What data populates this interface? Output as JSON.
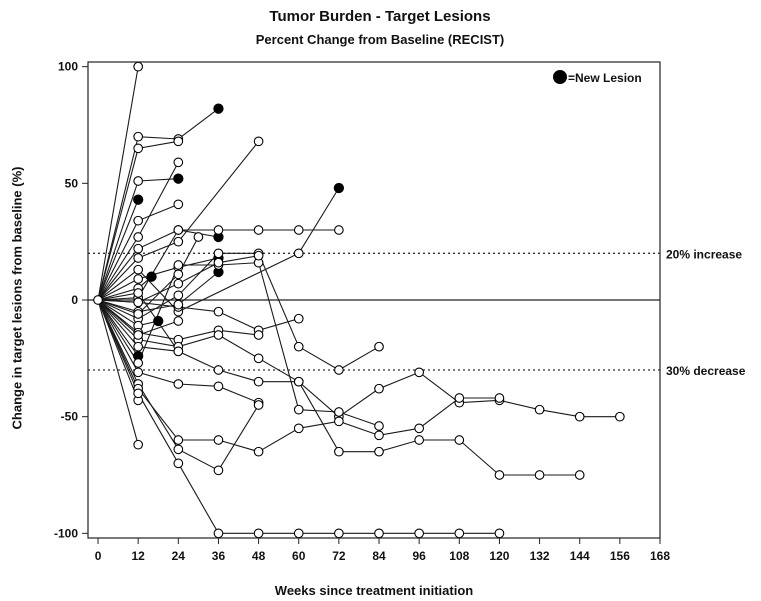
{
  "chart_data": {
    "type": "line",
    "title": "Tumor Burden - Target Lesions",
    "subtitle": "Percent Change from Baseline (RECIST)",
    "xlabel": "Weeks since treatment initiation",
    "ylabel": "Change in target lesions from baseline (%)",
    "xlim": [
      -3,
      168
    ],
    "ylim": [
      -102,
      102
    ],
    "xticks": [
      0,
      12,
      24,
      36,
      48,
      60,
      72,
      84,
      96,
      108,
      120,
      132,
      144,
      156,
      168
    ],
    "yticks": [
      -100,
      -50,
      0,
      50,
      100
    ],
    "legend": {
      "label": "=New Lesion",
      "marker": "filled-circle",
      "position": "top-right"
    },
    "reference_lines": [
      {
        "y": 20,
        "label": "20% increase",
        "style": "dotted"
      },
      {
        "y": -30,
        "label": "30% decrease",
        "style": "dotted"
      }
    ],
    "zero_line": 0,
    "series": [
      {
        "points": [
          [
            0,
            0
          ],
          [
            12,
            100
          ]
        ]
      },
      {
        "points": [
          [
            0,
            0
          ],
          [
            12,
            70
          ],
          [
            24,
            69
          ],
          [
            36,
            82
          ]
        ],
        "new_lesion": [
          false,
          false,
          false,
          true
        ]
      },
      {
        "points": [
          [
            0,
            0
          ],
          [
            12,
            65
          ],
          [
            24,
            68
          ]
        ]
      },
      {
        "points": [
          [
            0,
            0
          ],
          [
            12,
            51
          ],
          [
            24,
            52
          ]
        ],
        "new_lesion": [
          false,
          false,
          true
        ]
      },
      {
        "points": [
          [
            0,
            0
          ],
          [
            12,
            43
          ]
        ],
        "new_lesion": [
          false,
          true
        ]
      },
      {
        "points": [
          [
            0,
            0
          ],
          [
            12,
            34
          ],
          [
            24,
            41
          ]
        ]
      },
      {
        "points": [
          [
            0,
            0
          ],
          [
            12,
            27
          ],
          [
            24,
            59
          ]
        ]
      },
      {
        "points": [
          [
            0,
            0
          ],
          [
            12,
            22
          ],
          [
            24,
            30
          ],
          [
            36,
            27
          ]
        ],
        "new_lesion": [
          false,
          false,
          false,
          true
        ]
      },
      {
        "points": [
          [
            0,
            0
          ],
          [
            12,
            18
          ],
          [
            24,
            25
          ],
          [
            48,
            68
          ]
        ]
      },
      {
        "points": [
          [
            0,
            0
          ],
          [
            12,
            13
          ],
          [
            24,
            -5
          ],
          [
            60,
            20
          ],
          [
            72,
            48
          ]
        ],
        "new_lesion": [
          false,
          false,
          false,
          false,
          true
        ]
      },
      {
        "points": [
          [
            0,
            0
          ],
          [
            12,
            9
          ],
          [
            24,
            14
          ],
          [
            36,
            18
          ]
        ],
        "new_lesion": [
          false,
          false,
          false,
          true
        ]
      },
      {
        "points": [
          [
            0,
            0
          ],
          [
            12,
            5
          ],
          [
            16,
            10
          ]
        ],
        "new_lesion": [
          false,
          false,
          true
        ]
      },
      {
        "points": [
          [
            0,
            0
          ],
          [
            12,
            1
          ],
          [
            24,
            30
          ],
          [
            36,
            30
          ],
          [
            48,
            30
          ],
          [
            60,
            30
          ],
          [
            72,
            30
          ]
        ]
      },
      {
        "points": [
          [
            0,
            0
          ],
          [
            12,
            -1
          ],
          [
            24,
            -3
          ],
          [
            36,
            -5
          ],
          [
            48,
            -13
          ],
          [
            60,
            -8
          ]
        ]
      },
      {
        "points": [
          [
            0,
            0
          ],
          [
            12,
            -5
          ],
          [
            24,
            -2
          ],
          [
            36,
            12
          ]
        ],
        "new_lesion": [
          false,
          false,
          false,
          true
        ]
      },
      {
        "points": [
          [
            0,
            0
          ],
          [
            12,
            -8
          ],
          [
            24,
            2
          ],
          [
            36,
            20
          ],
          [
            48,
            20
          ],
          [
            60,
            -20
          ],
          [
            72,
            -30
          ],
          [
            84,
            -20
          ]
        ]
      },
      {
        "points": [
          [
            0,
            0
          ],
          [
            12,
            -11
          ],
          [
            18,
            -9
          ]
        ],
        "new_lesion": [
          false,
          false,
          true
        ]
      },
      {
        "points": [
          [
            0,
            0
          ],
          [
            12,
            -14
          ],
          [
            24,
            -17
          ],
          [
            36,
            -13
          ],
          [
            48,
            -15
          ]
        ]
      },
      {
        "points": [
          [
            0,
            0
          ],
          [
            12,
            -17
          ],
          [
            24,
            -20
          ],
          [
            36,
            -15
          ],
          [
            48,
            -25
          ],
          [
            60,
            -35
          ],
          [
            72,
            -50
          ],
          [
            84,
            -38
          ],
          [
            96,
            -31
          ],
          [
            108,
            -44
          ],
          [
            120,
            -43
          ],
          [
            132,
            -47
          ],
          [
            144,
            -50
          ],
          [
            156,
            -50
          ]
        ]
      },
      {
        "points": [
          [
            0,
            0
          ],
          [
            12,
            -20
          ],
          [
            24,
            -22
          ],
          [
            36,
            -30
          ],
          [
            48,
            -35
          ],
          [
            60,
            -35
          ],
          [
            72,
            -65
          ],
          [
            84,
            -65
          ],
          [
            96,
            -60
          ],
          [
            108,
            -60
          ],
          [
            120,
            -75
          ],
          [
            132,
            -75
          ],
          [
            144,
            -75
          ]
        ]
      },
      {
        "points": [
          [
            0,
            0
          ],
          [
            12,
            -24
          ]
        ],
        "new_lesion": [
          false,
          true
        ]
      },
      {
        "points": [
          [
            0,
            0
          ],
          [
            12,
            -27
          ],
          [
            24,
            15
          ],
          [
            36,
            15
          ],
          [
            48,
            16
          ],
          [
            60,
            -47
          ],
          [
            72,
            -48
          ],
          [
            84,
            -54
          ]
        ]
      },
      {
        "points": [
          [
            0,
            0
          ],
          [
            12,
            -31
          ],
          [
            24,
            -36
          ],
          [
            36,
            -37
          ],
          [
            48,
            -44
          ]
        ]
      },
      {
        "points": [
          [
            0,
            0
          ],
          [
            12,
            -36
          ],
          [
            24,
            -64
          ],
          [
            36,
            -73
          ],
          [
            48,
            -45
          ]
        ]
      },
      {
        "points": [
          [
            0,
            0
          ],
          [
            12,
            -38
          ],
          [
            24,
            -60
          ],
          [
            36,
            -60
          ],
          [
            48,
            -65
          ],
          [
            60,
            -55
          ],
          [
            72,
            -52
          ],
          [
            84,
            -58
          ],
          [
            96,
            -55
          ],
          [
            108,
            -42
          ],
          [
            120,
            -42
          ]
        ]
      },
      {
        "points": [
          [
            0,
            0
          ],
          [
            12,
            -43
          ]
        ]
      },
      {
        "points": [
          [
            0,
            0
          ],
          [
            12,
            -62
          ]
        ]
      },
      {
        "points": [
          [
            0,
            0
          ],
          [
            12,
            -40
          ],
          [
            24,
            -70
          ],
          [
            36,
            -100
          ],
          [
            48,
            -100
          ],
          [
            60,
            -100
          ],
          [
            72,
            -100
          ],
          [
            84,
            -100
          ],
          [
            96,
            -100
          ],
          [
            108,
            -100
          ],
          [
            120,
            -100
          ]
        ]
      },
      {
        "points": [
          [
            0,
            0
          ],
          [
            12,
            -1
          ],
          [
            24,
            7
          ],
          [
            36,
            16
          ],
          [
            48,
            19
          ]
        ]
      },
      {
        "points": [
          [
            0,
            0
          ],
          [
            12,
            -6
          ],
          [
            24,
            11
          ],
          [
            30,
            27
          ]
        ]
      },
      {
        "points": [
          [
            0,
            0
          ],
          [
            12,
            3
          ],
          [
            24,
            -22
          ]
        ]
      },
      {
        "points": [
          [
            0,
            0
          ],
          [
            12,
            -15
          ],
          [
            24,
            -9
          ]
        ]
      }
    ]
  }
}
